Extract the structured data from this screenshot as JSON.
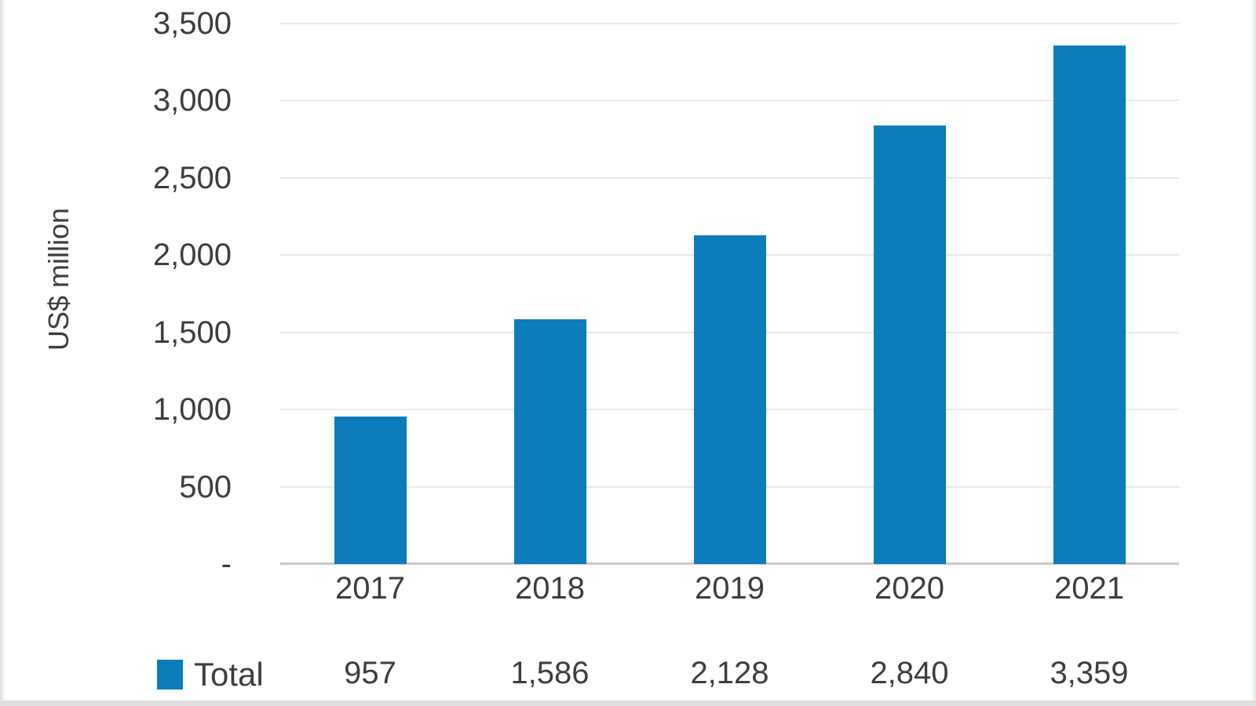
{
  "chart_data": {
    "type": "bar",
    "title": "",
    "xlabel": "",
    "ylabel": "US$ million",
    "categories": [
      "2017",
      "2018",
      "2019",
      "2020",
      "2021"
    ],
    "series": [
      {
        "name": "Total",
        "values": [
          957,
          1586,
          2128,
          2840,
          3359
        ],
        "color": "#0D7CBA"
      }
    ],
    "values_formatted": [
      "957",
      "1,586",
      "2,128",
      "2,840",
      "3,359"
    ],
    "y_ticks": [
      {
        "value": 0,
        "label": "-"
      },
      {
        "value": 500,
        "label": "500"
      },
      {
        "value": 1000,
        "label": "1,000"
      },
      {
        "value": 1500,
        "label": "1,500"
      },
      {
        "value": 2000,
        "label": "2,000"
      },
      {
        "value": 2500,
        "label": "2,500"
      },
      {
        "value": 3000,
        "label": "3,000"
      },
      {
        "value": 3500,
        "label": "3,500"
      }
    ],
    "ylim": [
      0,
      3500
    ],
    "grid": "horizontal-only",
    "legend_position": "bottom-left",
    "legend": [
      {
        "label": "Total",
        "color": "#0D7CBA"
      }
    ]
  },
  "colors": {
    "bar": "#0D7CBA",
    "gridline": "#E9E9E9",
    "axis_line": "#C9C9C9",
    "text": "#3D3D3D"
  }
}
